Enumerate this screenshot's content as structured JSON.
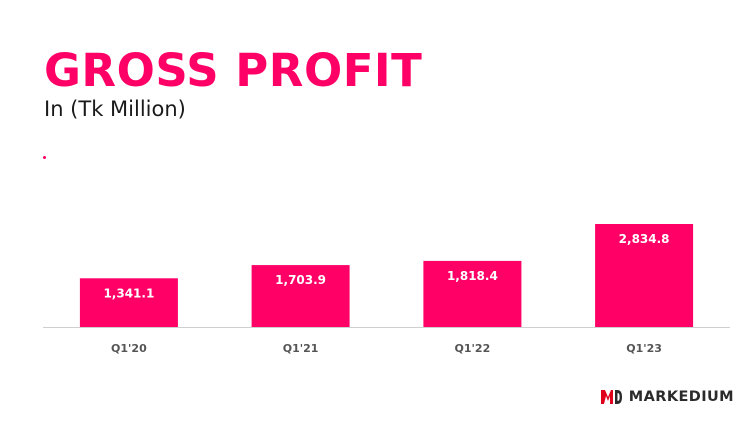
{
  "header": {
    "title": "GROSS PROFIT",
    "subtitle": "In (Tk Million)"
  },
  "brand": {
    "name": "MARKEDIUM",
    "mark_icon": "md-logo-icon",
    "mark_color": "#e0001b"
  },
  "colors": {
    "accent": "#ff0066",
    "axis": "#cfcfcf",
    "tick_text": "#555555",
    "bar_label": "#ffffff"
  },
  "chart_data": {
    "type": "bar",
    "categories": [
      "Q1'20",
      "Q1'21",
      "Q1'22",
      "Q1'23"
    ],
    "values": [
      1341.1,
      1703.9,
      1818.4,
      2834.8
    ],
    "value_labels": [
      "1,341.1",
      "1,703.9",
      "1,818.4",
      "2,834.8"
    ],
    "title": "GROSS PROFIT",
    "subtitle": "In (Tk Million)",
    "xlabel": "",
    "ylabel": "",
    "ylim": [
      0,
      2834.8
    ],
    "grid": false,
    "legend": "none"
  }
}
